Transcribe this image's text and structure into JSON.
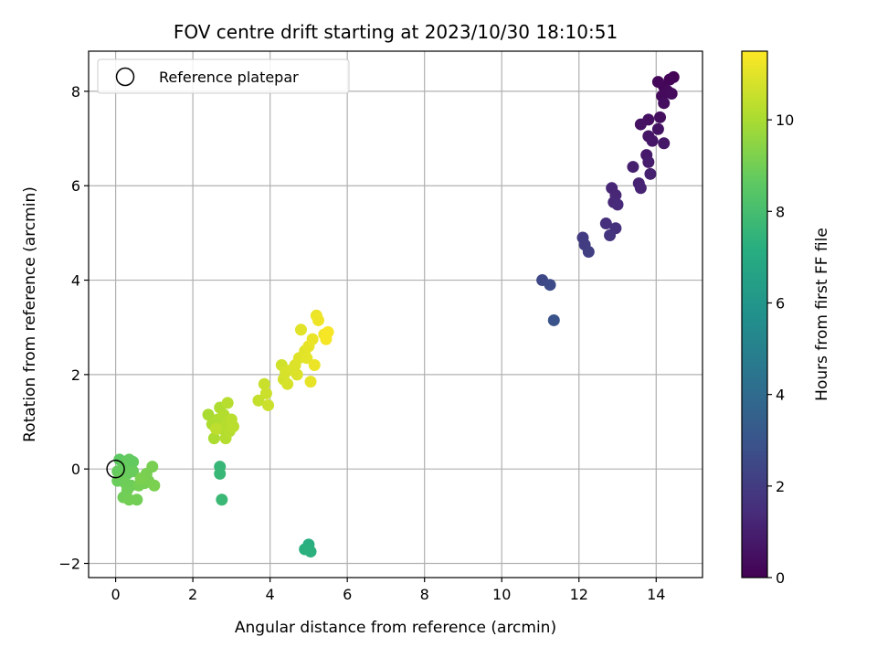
{
  "chart_data": {
    "type": "scatter",
    "title": "FOV centre drift starting at 2023/10/30 18:10:51",
    "xlabel": "Angular distance from reference (arcmin)",
    "ylabel": "Rotation from reference (arcmin)",
    "xlim": [
      -0.7,
      15.2
    ],
    "ylim": [
      -2.3,
      8.85
    ],
    "xticks": [
      0,
      2,
      4,
      6,
      8,
      10,
      12,
      14
    ],
    "yticks": [
      -2,
      0,
      2,
      4,
      6,
      8
    ],
    "grid": true,
    "legend": {
      "placement": "top-left",
      "entries": [
        "Reference platepar"
      ]
    },
    "reference_point": {
      "x": 0,
      "y": 0,
      "label": "Reference platepar"
    },
    "colorbar": {
      "label": "Hours from first FF file",
      "colormap": "viridis",
      "range": [
        0,
        11.5
      ],
      "ticks": [
        0,
        2,
        4,
        6,
        8,
        10
      ]
    },
    "points": [
      {
        "x": 14.45,
        "y": 8.3,
        "h": 0.05
      },
      {
        "x": 14.35,
        "y": 8.25,
        "h": 0.1
      },
      {
        "x": 14.2,
        "y": 8.1,
        "h": 0.15
      },
      {
        "x": 14.05,
        "y": 8.2,
        "h": 0.2
      },
      {
        "x": 14.3,
        "y": 8.0,
        "h": 0.25
      },
      {
        "x": 14.15,
        "y": 7.9,
        "h": 0.3
      },
      {
        "x": 14.4,
        "y": 7.95,
        "h": 0.35
      },
      {
        "x": 14.2,
        "y": 7.75,
        "h": 0.4
      },
      {
        "x": 14.1,
        "y": 7.45,
        "h": 0.45
      },
      {
        "x": 13.8,
        "y": 7.4,
        "h": 0.5
      },
      {
        "x": 13.6,
        "y": 7.3,
        "h": 0.55
      },
      {
        "x": 14.05,
        "y": 7.2,
        "h": 0.6
      },
      {
        "x": 13.8,
        "y": 7.05,
        "h": 0.65
      },
      {
        "x": 13.9,
        "y": 6.95,
        "h": 0.7
      },
      {
        "x": 14.2,
        "y": 6.9,
        "h": 0.75
      },
      {
        "x": 13.75,
        "y": 6.65,
        "h": 0.8
      },
      {
        "x": 13.8,
        "y": 6.5,
        "h": 0.9
      },
      {
        "x": 13.4,
        "y": 6.4,
        "h": 1.0
      },
      {
        "x": 13.85,
        "y": 6.25,
        "h": 1.05
      },
      {
        "x": 13.55,
        "y": 6.05,
        "h": 1.1
      },
      {
        "x": 13.6,
        "y": 5.95,
        "h": 1.15
      },
      {
        "x": 12.85,
        "y": 5.95,
        "h": 1.2
      },
      {
        "x": 12.95,
        "y": 5.8,
        "h": 1.25
      },
      {
        "x": 12.9,
        "y": 5.65,
        "h": 1.3
      },
      {
        "x": 13.0,
        "y": 5.6,
        "h": 1.35
      },
      {
        "x": 12.7,
        "y": 5.2,
        "h": 1.5
      },
      {
        "x": 12.95,
        "y": 5.1,
        "h": 1.6
      },
      {
        "x": 12.8,
        "y": 4.95,
        "h": 1.7
      },
      {
        "x": 12.1,
        "y": 4.9,
        "h": 2.0
      },
      {
        "x": 12.15,
        "y": 4.75,
        "h": 2.05
      },
      {
        "x": 12.25,
        "y": 4.6,
        "h": 2.1
      },
      {
        "x": 11.05,
        "y": 4.0,
        "h": 2.5
      },
      {
        "x": 11.25,
        "y": 3.9,
        "h": 2.6
      },
      {
        "x": 11.35,
        "y": 3.15,
        "h": 2.9
      },
      {
        "x": 5.0,
        "y": -1.6,
        "h": 7.2
      },
      {
        "x": 4.9,
        "y": -1.7,
        "h": 7.25
      },
      {
        "x": 5.05,
        "y": -1.75,
        "h": 7.3
      },
      {
        "x": 2.7,
        "y": 0.05,
        "h": 7.6
      },
      {
        "x": 2.7,
        "y": -0.1,
        "h": 7.65
      },
      {
        "x": 2.75,
        "y": -0.65,
        "h": 7.7
      },
      {
        "x": 0.1,
        "y": 0.2,
        "h": 8.6
      },
      {
        "x": 0.25,
        "y": 0.15,
        "h": 8.65
      },
      {
        "x": 0.35,
        "y": 0.2,
        "h": 8.7
      },
      {
        "x": 0.45,
        "y": 0.15,
        "h": 8.7
      },
      {
        "x": 0.2,
        "y": 0.05,
        "h": 8.75
      },
      {
        "x": 0.05,
        "y": -0.05,
        "h": 8.75
      },
      {
        "x": 0.3,
        "y": -0.1,
        "h": 8.8
      },
      {
        "x": 0.45,
        "y": -0.05,
        "h": 8.8
      },
      {
        "x": 0.15,
        "y": -0.2,
        "h": 8.85
      },
      {
        "x": 0.05,
        "y": -0.25,
        "h": 8.85
      },
      {
        "x": 0.25,
        "y": -0.3,
        "h": 8.9
      },
      {
        "x": 0.4,
        "y": -0.35,
        "h": 8.9
      },
      {
        "x": 0.3,
        "y": -0.45,
        "h": 8.95
      },
      {
        "x": 0.2,
        "y": -0.6,
        "h": 8.95
      },
      {
        "x": 0.35,
        "y": -0.65,
        "h": 9.0
      },
      {
        "x": 0.55,
        "y": -0.65,
        "h": 9.0
      },
      {
        "x": 0.6,
        "y": -0.35,
        "h": 9.05
      },
      {
        "x": 0.75,
        "y": -0.3,
        "h": 9.05
      },
      {
        "x": 0.8,
        "y": -0.1,
        "h": 9.1
      },
      {
        "x": 0.85,
        "y": -0.25,
        "h": 9.1
      },
      {
        "x": 0.95,
        "y": 0.05,
        "h": 9.1
      },
      {
        "x": 1.0,
        "y": -0.35,
        "h": 9.15
      },
      {
        "x": 0.65,
        "y": -0.2,
        "h": 9.15
      },
      {
        "x": 2.4,
        "y": 1.15,
        "h": 10.0
      },
      {
        "x": 2.5,
        "y": 0.95,
        "h": 10.05
      },
      {
        "x": 2.55,
        "y": 0.65,
        "h": 10.05
      },
      {
        "x": 2.65,
        "y": 1.05,
        "h": 10.1
      },
      {
        "x": 2.7,
        "y": 1.3,
        "h": 10.1
      },
      {
        "x": 2.75,
        "y": 0.85,
        "h": 10.15
      },
      {
        "x": 2.8,
        "y": 1.15,
        "h": 10.15
      },
      {
        "x": 2.85,
        "y": 0.95,
        "h": 10.2
      },
      {
        "x": 2.85,
        "y": 0.65,
        "h": 10.2
      },
      {
        "x": 2.9,
        "y": 1.4,
        "h": 10.25
      },
      {
        "x": 2.95,
        "y": 0.8,
        "h": 10.25
      },
      {
        "x": 3.0,
        "y": 1.05,
        "h": 10.3
      },
      {
        "x": 3.05,
        "y": 0.9,
        "h": 10.3
      },
      {
        "x": 2.6,
        "y": 0.85,
        "h": 10.35
      },
      {
        "x": 3.7,
        "y": 1.45,
        "h": 10.5
      },
      {
        "x": 3.85,
        "y": 1.8,
        "h": 10.55
      },
      {
        "x": 3.9,
        "y": 1.6,
        "h": 10.6
      },
      {
        "x": 3.95,
        "y": 1.35,
        "h": 10.6
      },
      {
        "x": 4.3,
        "y": 2.2,
        "h": 10.7
      },
      {
        "x": 4.35,
        "y": 1.9,
        "h": 10.75
      },
      {
        "x": 4.4,
        "y": 2.05,
        "h": 10.8
      },
      {
        "x": 4.45,
        "y": 1.8,
        "h": 10.8
      },
      {
        "x": 4.55,
        "y": 2.1,
        "h": 10.85
      },
      {
        "x": 4.65,
        "y": 2.2,
        "h": 10.9
      },
      {
        "x": 4.7,
        "y": 2.0,
        "h": 10.9
      },
      {
        "x": 4.75,
        "y": 2.35,
        "h": 10.95
      },
      {
        "x": 4.8,
        "y": 2.95,
        "h": 11.0
      },
      {
        "x": 4.9,
        "y": 2.5,
        "h": 11.0
      },
      {
        "x": 4.95,
        "y": 2.35,
        "h": 11.05
      },
      {
        "x": 5.0,
        "y": 2.6,
        "h": 11.1
      },
      {
        "x": 5.05,
        "y": 1.85,
        "h": 11.1
      },
      {
        "x": 5.1,
        "y": 2.75,
        "h": 11.15
      },
      {
        "x": 5.15,
        "y": 2.2,
        "h": 11.2
      },
      {
        "x": 5.2,
        "y": 3.25,
        "h": 11.2
      },
      {
        "x": 5.25,
        "y": 3.15,
        "h": 11.25
      },
      {
        "x": 5.4,
        "y": 2.85,
        "h": 11.3
      },
      {
        "x": 5.45,
        "y": 2.75,
        "h": 11.35
      },
      {
        "x": 5.5,
        "y": 2.9,
        "h": 11.4
      }
    ]
  }
}
